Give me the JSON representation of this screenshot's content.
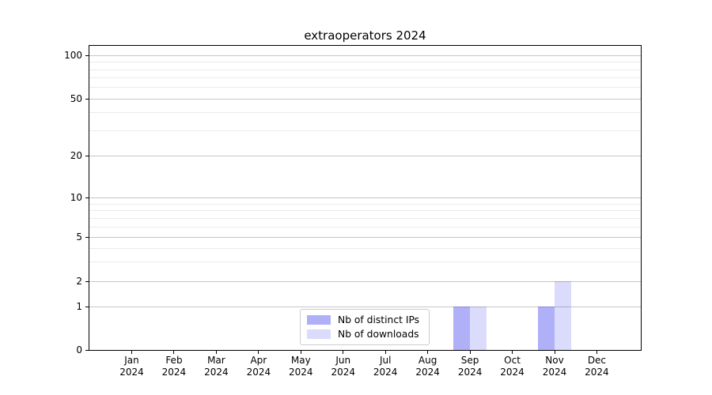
{
  "title": "extraoperators 2024",
  "legend": {
    "items": [
      {
        "label": "Nb of distinct IPs",
        "base_color": "#2828f0",
        "alpha": 0.37
      },
      {
        "label": "Nb of downloads",
        "base_color": "#2828f0",
        "alpha": 0.17
      }
    ]
  },
  "y_axis": {
    "tick_labels": [
      "100",
      "50",
      "20",
      "10",
      "5",
      "2",
      "1",
      "0"
    ],
    "tick_values": [
      100,
      50,
      20,
      10,
      5,
      2,
      1,
      0
    ]
  },
  "x_axis": {
    "tick_labels": [
      [
        "Jan",
        "2024"
      ],
      [
        "Feb",
        "2024"
      ],
      [
        "Mar",
        "2024"
      ],
      [
        "Apr",
        "2024"
      ],
      [
        "May",
        "2024"
      ],
      [
        "Jun",
        "2024"
      ],
      [
        "Jul",
        "2024"
      ],
      [
        "Aug",
        "2024"
      ],
      [
        "Sep",
        "2024"
      ],
      [
        "Oct",
        "2024"
      ],
      [
        "Nov",
        "2024"
      ],
      [
        "Dec",
        "2024"
      ]
    ]
  },
  "chart_data": {
    "type": "bar",
    "title": "extraoperators 2024",
    "categories": [
      "Jan 2024",
      "Feb 2024",
      "Mar 2024",
      "Apr 2024",
      "May 2024",
      "Jun 2024",
      "Jul 2024",
      "Aug 2024",
      "Sep 2024",
      "Oct 2024",
      "Nov 2024",
      "Dec 2024"
    ],
    "series": [
      {
        "name": "Nb of distinct IPs",
        "base_color": "#2828f0",
        "alpha": 0.37,
        "values": [
          0,
          0,
          0,
          0,
          0,
          0,
          0,
          0,
          1,
          0,
          1,
          0
        ]
      },
      {
        "name": "Nb of downloads",
        "base_color": "#2828f0",
        "alpha": 0.17,
        "values": [
          0,
          0,
          0,
          0,
          0,
          0,
          0,
          0,
          1,
          0,
          2,
          0
        ]
      }
    ],
    "xlabel": "",
    "ylabel": "",
    "yscale": "log-above-1 with 0 baseline",
    "ytick_values": [
      0,
      1,
      2,
      5,
      10,
      20,
      50,
      100
    ],
    "ylim": [
      0,
      115
    ],
    "grid": {
      "horizontal_major": true,
      "horizontal_minor": true,
      "vertical": false
    },
    "legend_position": "lower center"
  }
}
